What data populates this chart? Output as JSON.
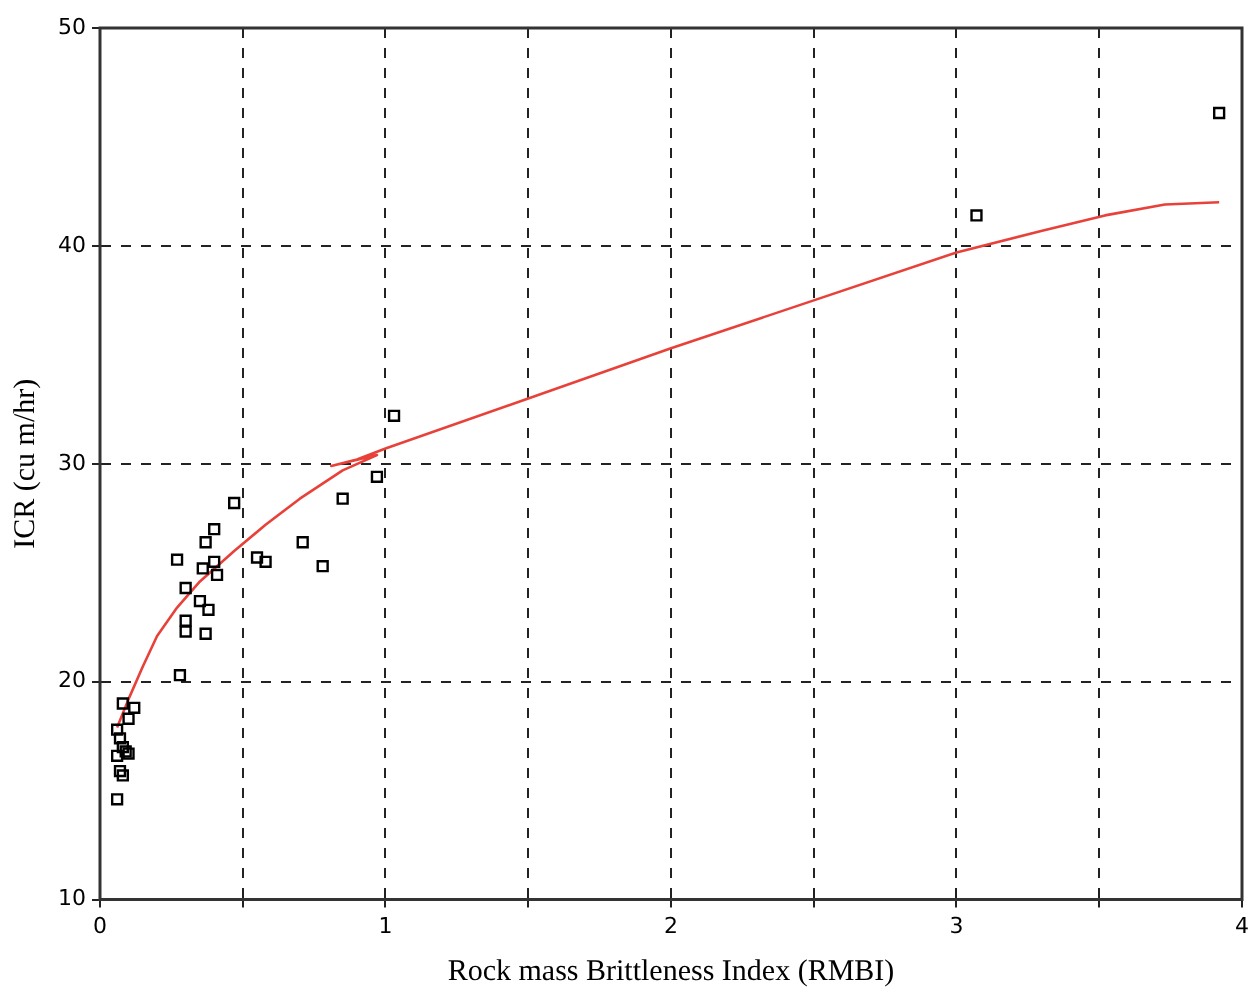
{
  "chart_data": {
    "type": "scatter",
    "xlabel": "Rock mass Brittleness Index (RMBI)",
    "ylabel": "ICR (cu m/hr)",
    "xlim": [
      0,
      4
    ],
    "ylim": [
      10,
      50
    ],
    "xticks": [
      0,
      {
        "value": 0.5,
        "label": null
      },
      1,
      {
        "value": 1.5,
        "label": null
      },
      2,
      {
        "value": 2.5,
        "label": null
      },
      3,
      {
        "value": 3.5,
        "label": null
      },
      4
    ],
    "yticks": [
      10,
      20,
      30,
      40,
      50
    ],
    "grid": true,
    "legend": false,
    "marker": "square",
    "series": [
      {
        "type": "scatter",
        "color": "#000000",
        "x": [
          3.92,
          3.07,
          1.03,
          0.97,
          0.85,
          0.78,
          0.71,
          0.58,
          0.55,
          0.47,
          0.4,
          0.37,
          0.4,
          0.36,
          0.41,
          0.27,
          0.3,
          0.35,
          0.38,
          0.3,
          0.3,
          0.37,
          0.28,
          0.08,
          0.12,
          0.1,
          0.06,
          0.07,
          0.08,
          0.09,
          0.06,
          0.1,
          0.07,
          0.08,
          0.06
        ],
        "values": [
          46.1,
          41.4,
          32.2,
          29.4,
          28.4,
          25.3,
          26.4,
          25.5,
          25.7,
          28.2,
          27,
          26.4,
          25.5,
          25.2,
          24.9,
          25.6,
          24.3,
          23.7,
          23.3,
          22.8,
          22.3,
          22.2,
          20.3,
          19,
          18.8,
          18.3,
          17.8,
          17.4,
          17,
          16.8,
          16.6,
          16.7,
          15.9,
          15.7,
          14.6
        ]
      },
      {
        "type": "line",
        "color": "#e8413a",
        "marker": "none",
        "line_style": "solid",
        "x": [
          0.06,
          0.1,
          0.15,
          0.2,
          0.27,
          0.35,
          0.47,
          0.58,
          0.7,
          0.85,
          0.97,
          0.81,
          0.9,
          1,
          1.5,
          2,
          2.5,
          3,
          3.3,
          3.52,
          3.73,
          3.92
        ],
        "values": [
          17.9,
          19.2,
          20.7,
          22.1,
          23.4,
          24.6,
          26,
          27.2,
          28.4,
          29.7,
          30.4,
          29.9,
          30.2,
          30.7,
          33,
          35.3,
          37.5,
          39.7,
          40.7,
          41.4,
          41.9,
          42
        ]
      }
    ]
  }
}
